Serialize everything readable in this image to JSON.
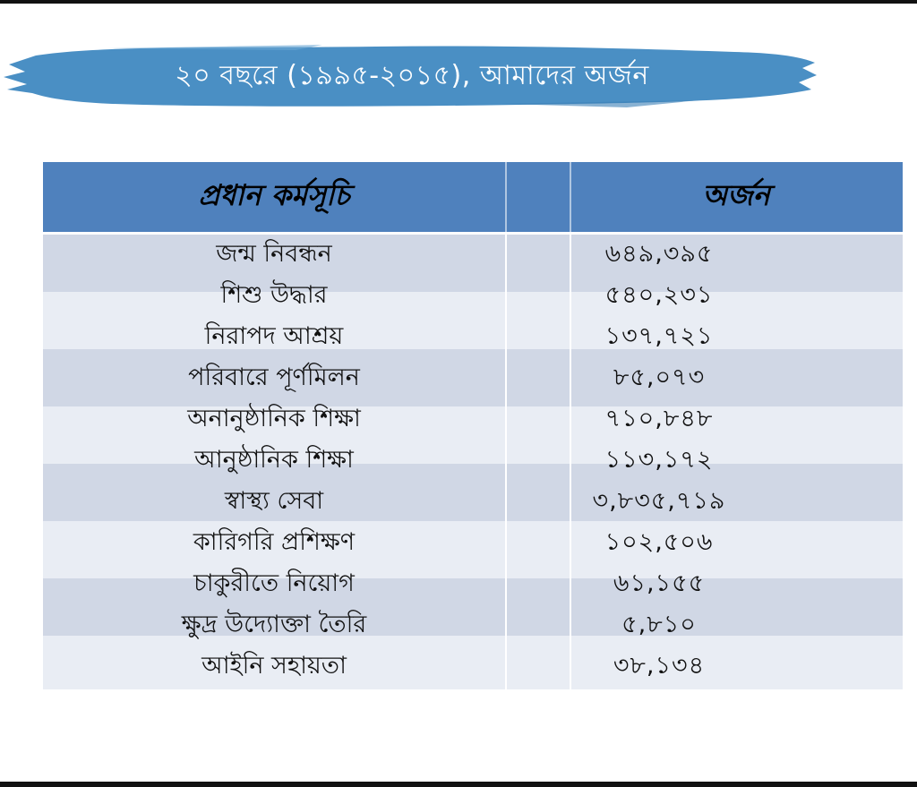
{
  "title": "২০ বছরে (১৯৯৫-২০১৫), আমাদের অর্জন",
  "colors": {
    "banner": "#4a8fc4",
    "header": "#4f81bd",
    "row_dark": "#d0d7e5",
    "row_light": "#e9edf4"
  },
  "table": {
    "headers": {
      "program": "প্রধান কর্মসূচি",
      "achievement": "অর্জন"
    },
    "rows": [
      {
        "program": "জন্ম  নিবন্ধন",
        "value": "৬৪৯,৩৯৫"
      },
      {
        "program": "শিশু উদ্ধার",
        "value": "৫৪০,২৩১"
      },
      {
        "program": "নিরাপদ  আশ্রয়",
        "value": "১৩৭,৭২১"
      },
      {
        "program": "পরিবারে পূর্ণমিলন",
        "value": "৮৫,০৭৩"
      },
      {
        "program": "অনানুষ্ঠানিক শিক্ষা",
        "value": "৭১০,৮৪৮"
      },
      {
        "program": "আনুষ্ঠানিক শিক্ষা",
        "value": "১১৩,১৭২"
      },
      {
        "program": "স্বাস্থ্য সেবা",
        "value": "৩,৮৩৫,৭১৯"
      },
      {
        "program": "কারিগরি প্রশিক্ষণ",
        "value": "১০২,৫০৬"
      },
      {
        "program": "চাকুরীতে নিয়োগ",
        "value": "৬১,১৫৫"
      },
      {
        "program": "ক্ষুদ্র উদ্যোক্তা তৈরি",
        "value": "৫,৮১০"
      },
      {
        "program": "আইনি সহায়তা",
        "value": "৩৮,১৩৪"
      }
    ]
  }
}
